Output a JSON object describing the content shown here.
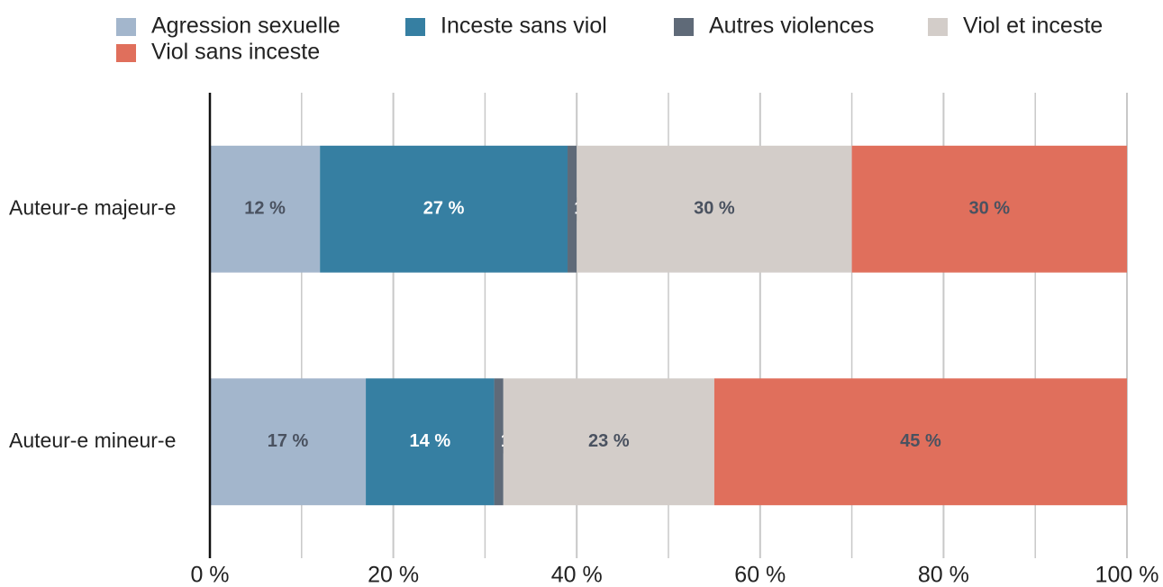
{
  "chart_data": {
    "type": "stacked-bar-horizontal",
    "categories": [
      "Auteur-e majeur-e",
      "Auteur-e mineur-e"
    ],
    "series": [
      {
        "name": "Agression sexuelle",
        "color": "#a3b6cc",
        "values": [
          12,
          17
        ],
        "value_labels": [
          "12 %",
          "17 %"
        ]
      },
      {
        "name": "Inceste sans viol",
        "color": "#367fa2",
        "values": [
          27,
          14
        ],
        "value_labels": [
          "27 %",
          "14 %"
        ]
      },
      {
        "name": "Autres violences",
        "color": "#5f6a78",
        "values": [
          1,
          1
        ],
        "value_labels": [
          "1 %",
          "1 %"
        ]
      },
      {
        "name": "Viol et inceste",
        "color": "#d3cdc9",
        "values": [
          30,
          23
        ],
        "value_labels": [
          "30 %",
          "23 %"
        ]
      },
      {
        "name": "Viol sans inceste",
        "color": "#e06f5c",
        "values": [
          30,
          45
        ],
        "value_labels": [
          "30 %",
          "45 %"
        ]
      }
    ],
    "xlim": [
      0,
      100
    ],
    "xticks": [
      {
        "value": 0,
        "label": "0 %"
      },
      {
        "value": 20,
        "label": "20 %"
      },
      {
        "value": 40,
        "label": "40 %"
      },
      {
        "value": 60,
        "label": "60 %"
      },
      {
        "value": 80,
        "label": "80 %"
      },
      {
        "value": 100,
        "label": "100 %"
      }
    ],
    "xminorticks": [
      10,
      30,
      50,
      70,
      90
    ],
    "grid": true,
    "legend": "top"
  }
}
